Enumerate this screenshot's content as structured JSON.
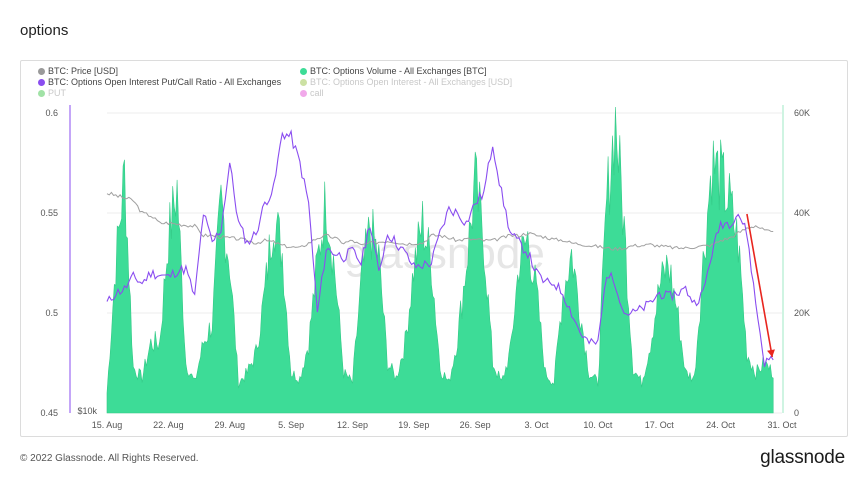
{
  "page": {
    "title": "options"
  },
  "legend": {
    "items": [
      {
        "label": "BTC: Price [USD]",
        "color": "#9a9a9a",
        "faded": false
      },
      {
        "label": "BTC: Options Volume - All Exchanges [BTC]",
        "color": "#3ddc97",
        "faded": false
      },
      {
        "label": "BTC: Options Open Interest Put/Call Ratio - All Exchanges",
        "color": "#8a4df0",
        "faded": false
      },
      {
        "label": "BTC: Options Open Interest - All Exchanges [USD]",
        "color": "#8fbc33",
        "faded": true
      },
      {
        "label": "PUT",
        "color": "#2fbf3a",
        "faded": true
      },
      {
        "label": "call",
        "color": "#e040d0",
        "faded": true
      }
    ]
  },
  "watermark": "glassnode",
  "footer": {
    "copyright": "© 2022 Glassnode. All Rights Reserved.",
    "logo": "glassnode"
  },
  "chart_data": {
    "type": "area",
    "x_tick_labels": [
      "15. Aug",
      "22. Aug",
      "29. Aug",
      "5. Sep",
      "12. Sep",
      "19. Sep",
      "26. Sep",
      "3. Oct",
      "10. Oct",
      "17. Oct",
      "24. Oct",
      "31. Oct"
    ],
    "x_range": [
      "2022-08-15",
      "2022-10-31"
    ],
    "left_axis": {
      "ticks": [
        0.45,
        0.5,
        0.55,
        0.6
      ],
      "tick_labels": [
        "0.45",
        "0.5",
        "0.55",
        "0.6"
      ],
      "range": [
        0.45,
        0.6
      ],
      "log_label": "$10k"
    },
    "right_axis": {
      "ticks": [
        0,
        20000,
        40000,
        60000
      ],
      "tick_labels": [
        "0",
        "20K",
        "40K",
        "60K"
      ],
      "range": [
        0,
        60000
      ]
    },
    "grid": true,
    "legend_position": "top-left",
    "series": [
      {
        "name": "BTC: Options Volume - All Exchanges [BTC]",
        "axis": "right",
        "type": "area",
        "color": "#3ddc97",
        "daily_values": [
          4000,
          30000,
          48000,
          9000,
          7000,
          14000,
          14000,
          35000,
          45000,
          10000,
          6000,
          14000,
          18000,
          42000,
          30000,
          6000,
          8000,
          12000,
          24000,
          40000,
          32000,
          8000,
          7000,
          14000,
          30000,
          43000,
          28000,
          8000,
          6000,
          26000,
          37000,
          31000,
          10000,
          7000,
          14000,
          29000,
          38000,
          30000,
          9000,
          6000,
          15000,
          30000,
          46000,
          34000,
          10000,
          6000,
          12000,
          30000,
          35000,
          24000,
          8000,
          6000,
          24000,
          32000,
          20000,
          8000,
          6000,
          42000,
          59000,
          37000,
          9000,
          6000,
          14000,
          25000,
          30000,
          21000,
          8000,
          7000,
          30000,
          50000,
          47000,
          42000,
          34000,
          12000,
          8000,
          10000,
          8000
        ]
      },
      {
        "name": "BTC: Options Open Interest Put/Call Ratio - All Exchanges",
        "axis": "left",
        "type": "line",
        "color": "#8a4df0",
        "daily_values": [
          0.505,
          0.51,
          0.512,
          0.518,
          0.515,
          0.52,
          0.519,
          0.518,
          0.521,
          0.522,
          0.508,
          0.55,
          0.535,
          0.542,
          0.575,
          0.545,
          0.535,
          0.54,
          0.555,
          0.562,
          0.59,
          0.588,
          0.575,
          0.555,
          0.5,
          0.532,
          0.53,
          0.528,
          0.531,
          0.525,
          0.545,
          0.52,
          0.54,
          0.535,
          0.53,
          0.523,
          0.524,
          0.525,
          0.54,
          0.552,
          0.55,
          0.545,
          0.555,
          0.56,
          0.585,
          0.56,
          0.54,
          0.535,
          0.53,
          0.52,
          0.515,
          0.515,
          0.51,
          0.5,
          0.49,
          0.485,
          0.485,
          0.52,
          0.515,
          0.5,
          0.5,
          0.502,
          0.505,
          0.51,
          0.508,
          0.51,
          0.512,
          0.505,
          0.51,
          0.53,
          0.545,
          0.545,
          0.55,
          0.54,
          0.505,
          0.475,
          0.478
        ]
      },
      {
        "name": "BTC: Price [USD]",
        "axis": "right",
        "type": "line",
        "color": "#a0a0a0",
        "daily_values": [
          44000,
          43500,
          43000,
          42500,
          40000,
          39500,
          38000,
          38000,
          37800,
          37600,
          37400,
          35500,
          35500,
          35200,
          35000,
          34800,
          34500,
          34000,
          34500,
          34200,
          33500,
          33200,
          33000,
          34000,
          35000,
          35500,
          35000,
          34000,
          34500,
          33500,
          34000,
          34200,
          34400,
          34200,
          33800,
          34000,
          34000,
          35500,
          35500,
          35000,
          34500,
          34800,
          34700,
          34500,
          34500,
          35000,
          35500,
          35500,
          36000,
          35500,
          35200,
          34700,
          34600,
          34000,
          33800,
          33500,
          33300,
          33000,
          32800,
          33000,
          33500,
          33500,
          33700,
          33400,
          33200,
          33000,
          33000,
          33200,
          33400,
          33600,
          34500,
          35000,
          36000,
          37000,
          37500,
          36500,
          36000
        ]
      }
    ],
    "annotation": {
      "type": "arrow",
      "color": "#e8261f",
      "from_date": "2022-10-27",
      "to_date": "2022-10-30"
    }
  }
}
